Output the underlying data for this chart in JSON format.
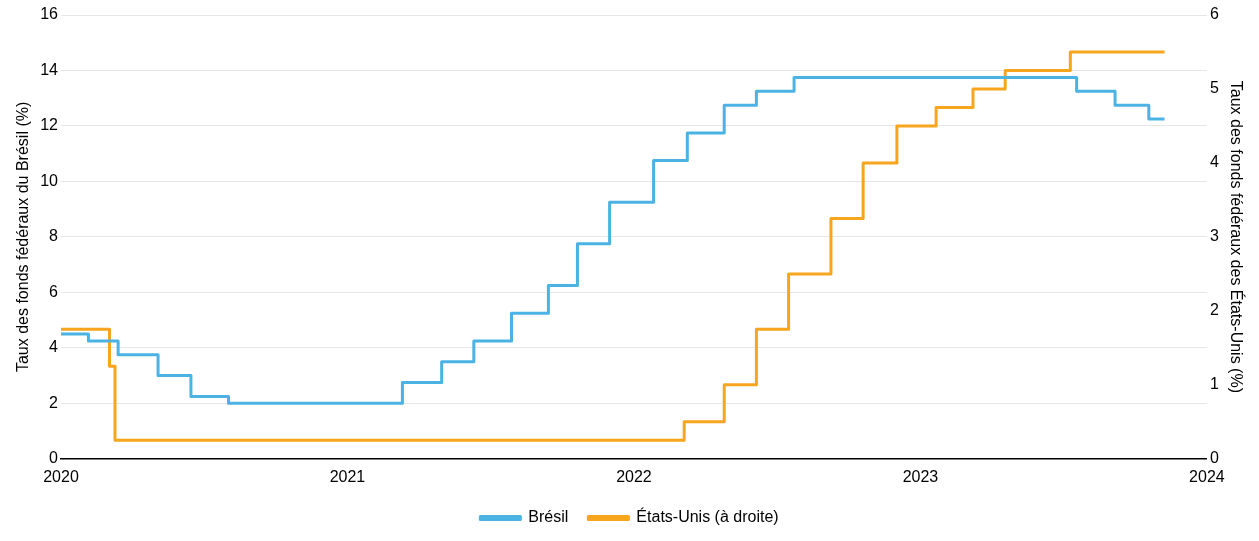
{
  "chart_data": {
    "type": "step",
    "ylabel": "Taux des fonds fédéraux du Brésil (%)",
    "y2label": "Taux des fonds fédéraux des États-Unis (%)",
    "xlim": [
      "2020",
      "2024"
    ],
    "xticks": [
      "2020",
      "2021",
      "2022",
      "2023",
      "2024"
    ],
    "ylim": [
      0,
      16
    ],
    "yticks": [
      0,
      2,
      4,
      6,
      8,
      10,
      12,
      14,
      16
    ],
    "y2lim": [
      0,
      6
    ],
    "y2ticks": [
      0,
      1,
      2,
      3,
      4,
      5,
      6
    ],
    "grid": "y",
    "legend": "bottom",
    "line_style": "solid",
    "marker": "none",
    "series": [
      {
        "name": "Brésil",
        "color": "#4bb3e3",
        "x": [
          "2020-01-01",
          "2020-02-05",
          "2020-03-14",
          "2020-05-04",
          "2020-06-15",
          "2020-08-02",
          "2021-03-12",
          "2021-05-01",
          "2021-06-11",
          "2021-07-29",
          "2021-09-14",
          "2021-10-21",
          "2021-12-01",
          "2022-01-26",
          "2022-03-10",
          "2022-04-26",
          "2022-06-06",
          "2022-07-24",
          "2023-07-19",
          "2023-09-06",
          "2023-10-19",
          "2023-11-08"
        ],
        "values": [
          4.5,
          4.25,
          3.75,
          3.0,
          2.25,
          2.0,
          2.75,
          3.5,
          4.25,
          5.25,
          6.25,
          7.75,
          9.25,
          10.75,
          11.75,
          12.75,
          13.25,
          13.75,
          13.25,
          12.75,
          12.25,
          12.25
        ]
      },
      {
        "name": "États-Unis (à droite)",
        "color": "#f7a51c",
        "axis": "y2",
        "x": [
          "2020-01-01",
          "2020-03-03",
          "2020-03-10",
          "2022-03-06",
          "2022-04-26",
          "2022-06-06",
          "2022-07-17",
          "2022-09-09",
          "2022-10-20",
          "2022-12-02",
          "2023-01-21",
          "2023-03-09",
          "2023-04-19",
          "2023-07-11",
          "2023-11-08"
        ],
        "values": [
          1.75,
          1.25,
          0.25,
          0.5,
          1.0,
          1.75,
          2.5,
          3.25,
          4.0,
          4.5,
          4.75,
          5.0,
          5.25,
          5.5,
          5.5
        ]
      }
    ]
  }
}
